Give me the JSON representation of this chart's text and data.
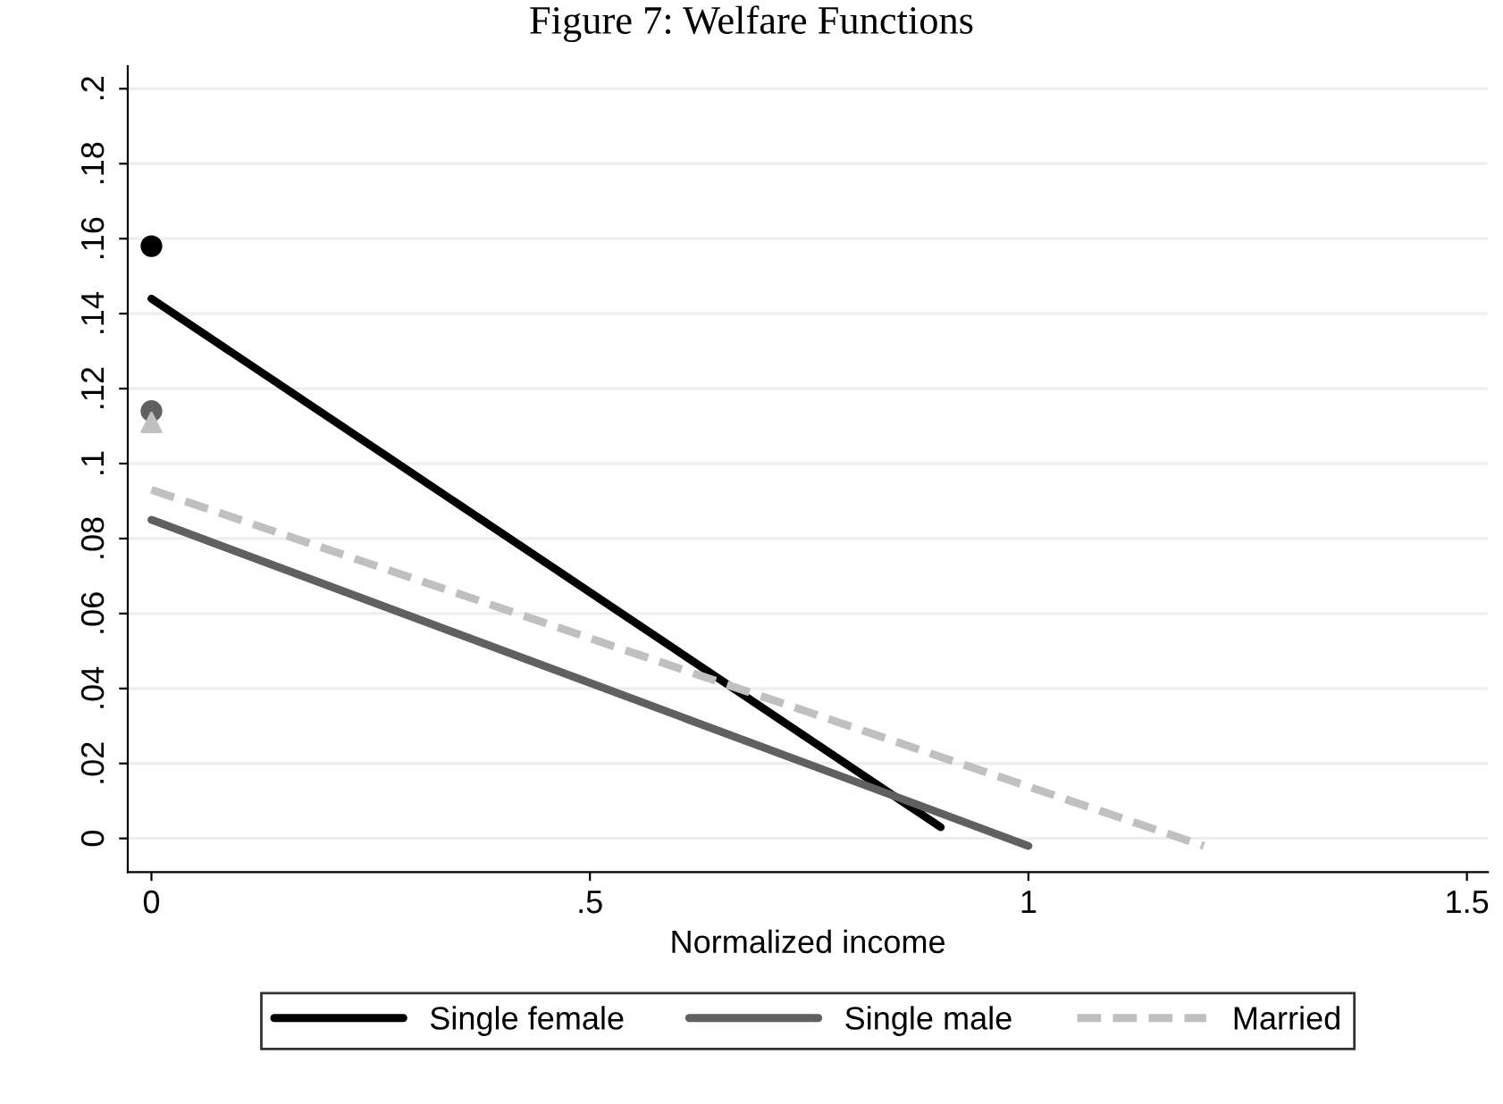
{
  "chart_data": {
    "type": "line",
    "title": "Figure 7: Welfare Functions",
    "xlabel": "Normalized income",
    "xlim": [
      -0.027,
      1.524
    ],
    "xticks": [
      0,
      {
        "value": 0.5,
        "label": ".5"
      },
      1,
      1.5
    ],
    "ylim": [
      -0.009,
      0.206
    ],
    "yticks": [
      0,
      {
        "value": 0.02,
        "label": ".02"
      },
      {
        "value": 0.04,
        "label": ".04"
      },
      {
        "value": 0.06,
        "label": ".06"
      },
      {
        "value": 0.08,
        "label": ".08"
      },
      {
        "value": 0.1,
        "label": ".1"
      },
      {
        "value": 0.12,
        "label": ".12"
      },
      {
        "value": 0.14,
        "label": ".14"
      },
      {
        "value": 0.16,
        "label": ".16"
      },
      {
        "value": 0.18,
        "label": ".18"
      },
      {
        "value": 0.2,
        "label": ".2"
      }
    ],
    "grid": "y",
    "legend": "bottom",
    "series": [
      {
        "name": "Single female",
        "color": "#000000",
        "line_style": "solid",
        "x": [
          0,
          0.9
        ],
        "values": [
          0.144,
          0.003
        ]
      },
      {
        "name": "Single male",
        "color": "#606060",
        "line_style": "solid",
        "x": [
          0,
          1
        ],
        "values": [
          0.085,
          -0.002
        ]
      },
      {
        "name": "Married",
        "color": "#c0c0c0",
        "line_style": "dashed",
        "x": [
          0,
          1.2
        ],
        "values": [
          0.093,
          -0.002
        ]
      },
      {
        "type": "scatter",
        "color": "#000000",
        "marker": "circle",
        "x": [
          0
        ],
        "values": [
          0.158
        ]
      },
      {
        "type": "scatter",
        "color": "#606060",
        "marker": "circle",
        "x": [
          0
        ],
        "values": [
          0.114
        ]
      },
      {
        "type": "scatter",
        "color": "#c0c0c0",
        "marker": "triangle",
        "x": [
          0
        ],
        "values": [
          0.111
        ]
      }
    ]
  }
}
